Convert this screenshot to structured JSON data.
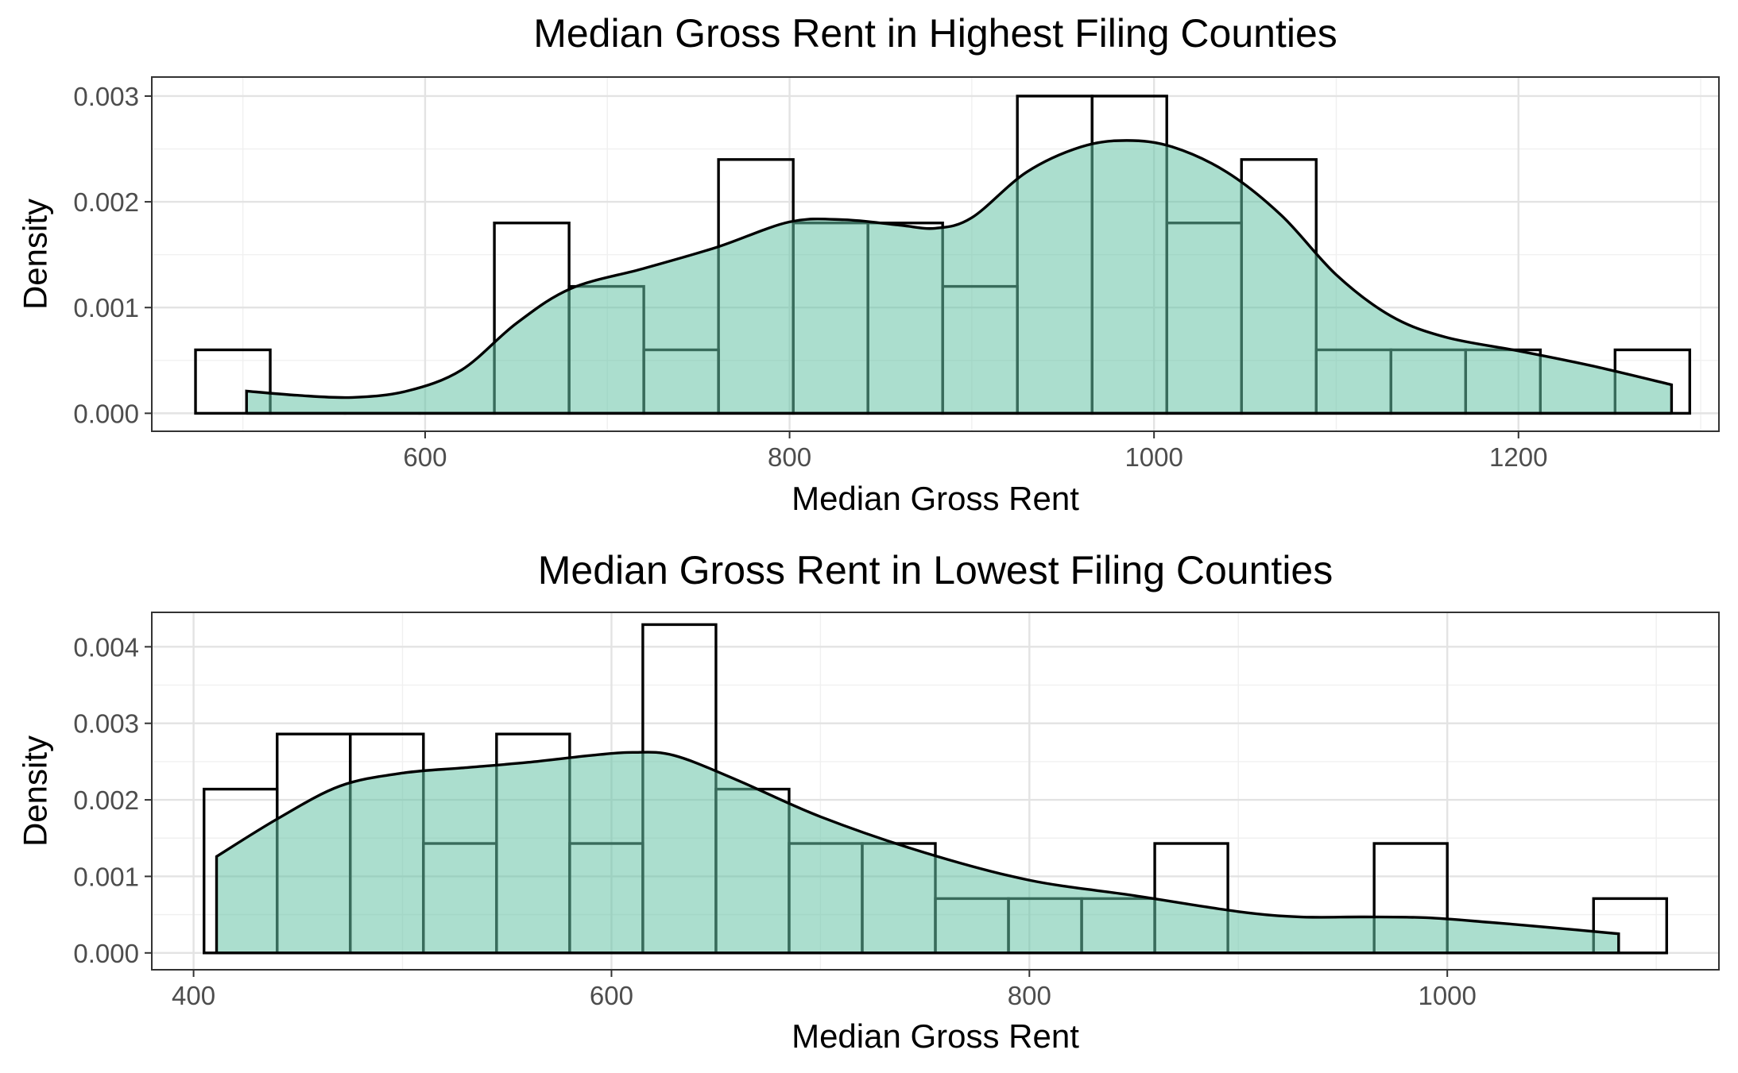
{
  "chart_data": [
    {
      "type": "histogram",
      "title": "Median Gross Rent in Highest Filing Counties",
      "xlabel": "Median Gross Rent",
      "ylabel": "Density",
      "xlim": [
        450,
        1310
      ],
      "ylim": [
        -0.00017,
        0.00318
      ],
      "x_ticks": [
        600,
        800,
        1000,
        1200
      ],
      "y_ticks": [
        0.0,
        0.001,
        0.002,
        0.003
      ],
      "y_tick_labels": [
        "0.000",
        "0.001",
        "0.002",
        "0.003"
      ],
      "grid": true,
      "bins": [
        {
          "x0": 474,
          "x1": 515,
          "density": 0.0006
        },
        {
          "x0": 515,
          "x1": 556,
          "density": 0.0
        },
        {
          "x0": 556,
          "x1": 597,
          "density": 0.0
        },
        {
          "x0": 597,
          "x1": 638,
          "density": 0.0
        },
        {
          "x0": 638,
          "x1": 679,
          "density": 0.0018
        },
        {
          "x0": 679,
          "x1": 720,
          "density": 0.0012
        },
        {
          "x0": 720,
          "x1": 761,
          "density": 0.0006
        },
        {
          "x0": 761,
          "x1": 802,
          "density": 0.0024
        },
        {
          "x0": 802,
          "x1": 843,
          "density": 0.0018
        },
        {
          "x0": 843,
          "x1": 884,
          "density": 0.0018
        },
        {
          "x0": 884,
          "x1": 925,
          "density": 0.0012
        },
        {
          "x0": 925,
          "x1": 966,
          "density": 0.003
        },
        {
          "x0": 966,
          "x1": 1007,
          "density": 0.003
        },
        {
          "x0": 1007,
          "x1": 1048,
          "density": 0.0018
        },
        {
          "x0": 1048,
          "x1": 1089,
          "density": 0.0024
        },
        {
          "x0": 1089,
          "x1": 1130,
          "density": 0.0006
        },
        {
          "x0": 1130,
          "x1": 1171,
          "density": 0.0006
        },
        {
          "x0": 1171,
          "x1": 1212,
          "density": 0.0006
        },
        {
          "x0": 1212,
          "x1": 1253,
          "density": 0.0
        },
        {
          "x0": 1253,
          "x1": 1294,
          "density": 0.0006
        }
      ],
      "density_curve": {
        "x": [
          502,
          530,
          560,
          590,
          620,
          650,
          680,
          720,
          760,
          800,
          830,
          860,
          880,
          900,
          930,
          960,
          985,
          1010,
          1040,
          1070,
          1100,
          1130,
          1160,
          1200,
          1240,
          1284
        ],
        "y": [
          0.00021,
          0.00017,
          0.00015,
          0.00021,
          0.00041,
          0.00085,
          0.00118,
          0.00137,
          0.00157,
          0.00181,
          0.00183,
          0.00178,
          0.00175,
          0.00185,
          0.00228,
          0.00252,
          0.00258,
          0.00252,
          0.00228,
          0.00187,
          0.00131,
          0.00092,
          0.00072,
          0.00059,
          0.00045,
          0.00027
        ]
      }
    },
    {
      "type": "histogram",
      "title": "Median Gross Rent in Lowest Filing Counties",
      "xlabel": "Median Gross Rent",
      "ylabel": "Density",
      "xlim": [
        380,
        1130
      ],
      "ylim": [
        -0.00022,
        0.00445
      ],
      "x_ticks": [
        400,
        600,
        800,
        1000
      ],
      "y_ticks": [
        0.0,
        0.001,
        0.002,
        0.003,
        0.004
      ],
      "y_tick_labels": [
        "0.000",
        "0.001",
        "0.002",
        "0.003",
        "0.004"
      ],
      "grid": true,
      "bins": [
        {
          "x0": 405,
          "x1": 440,
          "density": 0.00214
        },
        {
          "x0": 440,
          "x1": 475,
          "density": 0.00286
        },
        {
          "x0": 475,
          "x1": 510,
          "density": 0.00286
        },
        {
          "x0": 510,
          "x1": 545,
          "density": 0.00143
        },
        {
          "x0": 545,
          "x1": 580,
          "density": 0.00286
        },
        {
          "x0": 580,
          "x1": 615,
          "density": 0.00143
        },
        {
          "x0": 615,
          "x1": 650,
          "density": 0.00429
        },
        {
          "x0": 650,
          "x1": 685,
          "density": 0.00214
        },
        {
          "x0": 685,
          "x1": 720,
          "density": 0.00143
        },
        {
          "x0": 720,
          "x1": 755,
          "density": 0.00143
        },
        {
          "x0": 755,
          "x1": 790,
          "density": 0.00071
        },
        {
          "x0": 790,
          "x1": 825,
          "density": 0.00071
        },
        {
          "x0": 825,
          "x1": 860,
          "density": 0.00071
        },
        {
          "x0": 860,
          "x1": 895,
          "density": 0.00143
        },
        {
          "x0": 895,
          "x1": 930,
          "density": 0.0
        },
        {
          "x0": 930,
          "x1": 965,
          "density": 0.0
        },
        {
          "x0": 965,
          "x1": 1000,
          "density": 0.00143
        },
        {
          "x0": 1000,
          "x1": 1035,
          "density": 0.0
        },
        {
          "x0": 1035,
          "x1": 1070,
          "density": 0.0
        },
        {
          "x0": 1070,
          "x1": 1105,
          "density": 0.00071
        }
      ],
      "density_curve": {
        "x": [
          411,
          440,
          470,
          500,
          530,
          560,
          590,
          610,
          630,
          660,
          700,
          750,
          800,
          850,
          900,
          930,
          960,
          990,
          1020,
          1050,
          1082
        ],
        "y": [
          0.00126,
          0.00175,
          0.00218,
          0.00235,
          0.00242,
          0.00249,
          0.00258,
          0.00262,
          0.00258,
          0.00226,
          0.00178,
          0.00131,
          0.00095,
          0.00075,
          0.00054,
          0.00047,
          0.00047,
          0.00046,
          0.0004,
          0.00033,
          0.00025
        ]
      }
    }
  ]
}
